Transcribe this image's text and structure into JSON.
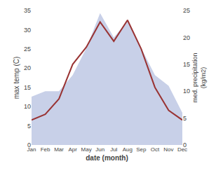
{
  "chart_data": {
    "type": "line",
    "categories": [
      "Jan",
      "Feb",
      "Mar",
      "Apr",
      "May",
      "Jun",
      "Jul",
      "Aug",
      "Sep",
      "Oct",
      "Nov",
      "Dec"
    ],
    "series": [
      {
        "type": "area",
        "axis": "y2",
        "color": "#c8d0e8",
        "values": [
          9.0,
          10.0,
          10.0,
          13.0,
          18.0,
          24.5,
          20.0,
          23.0,
          18.0,
          13.0,
          11.0,
          6.0
        ]
      },
      {
        "type": "line",
        "axis": "y",
        "color": "#993333",
        "values": [
          6.5,
          8.0,
          12.0,
          21.0,
          25.5,
          32.0,
          27.0,
          32.5,
          25.0,
          15.0,
          9.0,
          6.5
        ]
      }
    ],
    "xlabel": "date (month)",
    "ylabel": "max temp (C)",
    "y2label": "med. precipitation\n(kg/m2)",
    "ylim": [
      0,
      35
    ],
    "yticks": [
      0,
      5,
      10,
      15,
      20,
      25,
      30,
      35
    ],
    "y2lim": [
      0,
      25
    ],
    "y2ticks": [
      0,
      5,
      10,
      15,
      20,
      25
    ],
    "grid": false
  }
}
